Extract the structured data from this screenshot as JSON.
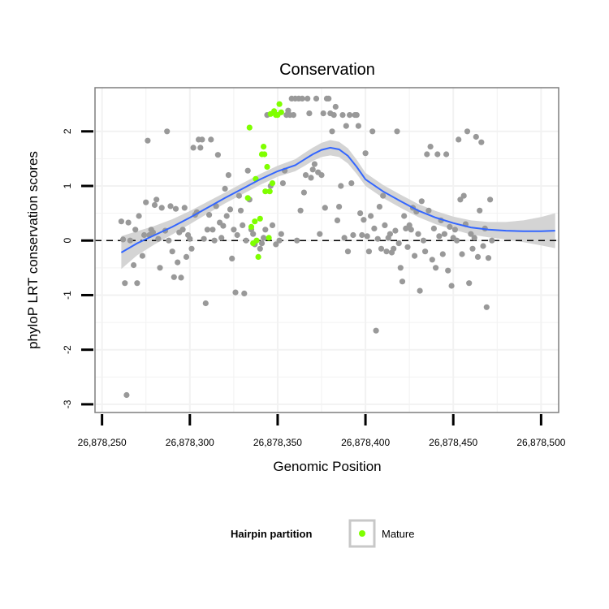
{
  "chart_data": {
    "type": "scatter",
    "title": "Conservation",
    "xlabel": "Genomic Position",
    "ylabel": "phyloP LRT conservation scores",
    "xlim": [
      26878246,
      26878510
    ],
    "ylim": [
      -3.15,
      2.8
    ],
    "x_ticks": [
      26878250,
      26878300,
      26878350,
      26878400,
      26878450,
      26878500
    ],
    "x_tick_labels": [
      "26,878,250",
      "26,878,300",
      "26,878,350",
      "26,878,400",
      "26,878,450",
      "26,878,500"
    ],
    "y_ticks": [
      -3,
      -2,
      -1,
      0,
      1,
      2
    ],
    "y_tick_labels": [
      "-3",
      "-2",
      "-1",
      "0",
      "1",
      "2"
    ],
    "grid": true,
    "reference_line": {
      "y": 0,
      "style": "dashed"
    },
    "legend": {
      "title": "Hairpin partition",
      "entries": [
        "Mature"
      ],
      "position": "bottom"
    },
    "colors": {
      "background_point": "#999999",
      "mature_point": "#7fff00",
      "smooth_line": "#3366ff",
      "ribbon": "#d4d4d4",
      "grid": "#f2f2f2",
      "panel_border": "#7f7f7f"
    },
    "series": [
      {
        "name": "",
        "color": "#999999",
        "points": [
          [
            26878261,
            0.35
          ],
          [
            26878262,
            0.02
          ],
          [
            26878263,
            -0.78
          ],
          [
            26878264,
            -2.83
          ],
          [
            26878265,
            0.33
          ],
          [
            26878266,
            0.0
          ],
          [
            26878268,
            -0.45
          ],
          [
            26878269,
            0.2
          ],
          [
            26878270,
            -0.78
          ],
          [
            26878271,
            0.45
          ],
          [
            26878273,
            -0.28
          ],
          [
            26878274,
            0.1
          ],
          [
            26878275,
            0.7
          ],
          [
            26878276,
            1.83
          ],
          [
            26878277,
            0.1
          ],
          [
            26878278,
            0.2
          ],
          [
            26878279,
            0.15
          ],
          [
            26878280,
            0.65
          ],
          [
            26878281,
            0.75
          ],
          [
            26878282,
            0.03
          ],
          [
            26878283,
            -0.5
          ],
          [
            26878284,
            0.6
          ],
          [
            26878286,
            0.18
          ],
          [
            26878287,
            2.0
          ],
          [
            26878288,
            0.0
          ],
          [
            26878289,
            0.63
          ],
          [
            26878290,
            -0.2
          ],
          [
            26878291,
            -0.67
          ],
          [
            26878292,
            0.58
          ],
          [
            26878293,
            -0.4
          ],
          [
            26878294,
            0.15
          ],
          [
            26878295,
            -0.68
          ],
          [
            26878296,
            0.2
          ],
          [
            26878297,
            0.6
          ],
          [
            26878298,
            -0.3
          ],
          [
            26878299,
            0.1
          ],
          [
            26878300,
            0.03
          ],
          [
            26878301,
            -0.15
          ],
          [
            26878302,
            1.7
          ],
          [
            26878303,
            0.47
          ],
          [
            26878304,
            0.52
          ],
          [
            26878305,
            1.85
          ],
          [
            26878306,
            1.7
          ],
          [
            26878307,
            1.85
          ],
          [
            26878308,
            0.03
          ],
          [
            26878309,
            -1.15
          ],
          [
            26878310,
            0.2
          ],
          [
            26878311,
            0.47
          ],
          [
            26878312,
            1.85
          ],
          [
            26878313,
            0.2
          ],
          [
            26878314,
            0.0
          ],
          [
            26878315,
            0.63
          ],
          [
            26878316,
            1.57
          ],
          [
            26878317,
            0.33
          ],
          [
            26878318,
            0.05
          ],
          [
            26878319,
            0.27
          ],
          [
            26878320,
            0.95
          ],
          [
            26878321,
            0.45
          ],
          [
            26878322,
            1.2
          ],
          [
            26878323,
            0.57
          ],
          [
            26878324,
            -0.33
          ],
          [
            26878325,
            0.2
          ],
          [
            26878326,
            -0.95
          ],
          [
            26878327,
            0.1
          ],
          [
            26878328,
            0.82
          ],
          [
            26878329,
            0.55
          ],
          [
            26878330,
            0.28
          ],
          [
            26878331,
            -0.97
          ],
          [
            26878332,
            0.0
          ],
          [
            26878333,
            1.28
          ],
          [
            26878334,
            0.75
          ],
          [
            26878335,
            0.2
          ],
          [
            26878336,
            0.12
          ],
          [
            26878337,
            -0.07
          ],
          [
            26878340,
            -0.15
          ],
          [
            26878341,
            -0.05
          ],
          [
            26878342,
            0.05
          ],
          [
            26878343,
            0.2
          ],
          [
            26878344,
            2.3
          ],
          [
            26878346,
            1.0
          ],
          [
            26878347,
            0.28
          ],
          [
            26878349,
            -0.07
          ],
          [
            26878351,
            0.0
          ],
          [
            26878352,
            0.12
          ],
          [
            26878353,
            1.05
          ],
          [
            26878354,
            1.28
          ],
          [
            26878355,
            2.3
          ],
          [
            26878356,
            2.38
          ],
          [
            26878357,
            2.3
          ],
          [
            26878358,
            2.6
          ],
          [
            26878359,
            2.3
          ],
          [
            26878360,
            2.6
          ],
          [
            26878361,
            0.0
          ],
          [
            26878362,
            2.6
          ],
          [
            26878363,
            0.55
          ],
          [
            26878364,
            2.6
          ],
          [
            26878365,
            0.88
          ],
          [
            26878366,
            1.2
          ],
          [
            26878367,
            2.6
          ],
          [
            26878368,
            2.33
          ],
          [
            26878369,
            1.15
          ],
          [
            26878370,
            1.3
          ],
          [
            26878371,
            1.4
          ],
          [
            26878372,
            2.6
          ],
          [
            26878373,
            1.25
          ],
          [
            26878374,
            0.12
          ],
          [
            26878375,
            1.2
          ],
          [
            26878376,
            2.33
          ],
          [
            26878377,
            0.6
          ],
          [
            26878378,
            2.6
          ],
          [
            26878379,
            2.6
          ],
          [
            26878380,
            2.33
          ],
          [
            26878381,
            2.0
          ],
          [
            26878382,
            2.3
          ],
          [
            26878383,
            2.45
          ],
          [
            26878384,
            0.37
          ],
          [
            26878385,
            0.62
          ],
          [
            26878386,
            1.0
          ],
          [
            26878387,
            2.3
          ],
          [
            26878388,
            0.05
          ],
          [
            26878389,
            2.1
          ],
          [
            26878390,
            -0.2
          ],
          [
            26878391,
            2.3
          ],
          [
            26878392,
            1.05
          ],
          [
            26878393,
            0.1
          ],
          [
            26878394,
            2.3
          ],
          [
            26878395,
            2.3
          ],
          [
            26878396,
            2.1
          ],
          [
            26878397,
            0.5
          ],
          [
            26878398,
            0.1
          ],
          [
            26878399,
            0.38
          ],
          [
            26878400,
            1.6
          ],
          [
            26878401,
            0.08
          ],
          [
            26878402,
            -0.2
          ],
          [
            26878403,
            0.45
          ],
          [
            26878404,
            2.0
          ],
          [
            26878405,
            0.22
          ],
          [
            26878406,
            -1.65
          ],
          [
            26878407,
            0.03
          ],
          [
            26878408,
            0.62
          ],
          [
            26878409,
            -0.15
          ],
          [
            26878410,
            0.82
          ],
          [
            26878411,
            0.28
          ],
          [
            26878412,
            -0.2
          ],
          [
            26878413,
            0.05
          ],
          [
            26878414,
            0.12
          ],
          [
            26878415,
            -0.22
          ],
          [
            26878416,
            -0.15
          ],
          [
            26878417,
            0.18
          ],
          [
            26878418,
            2.0
          ],
          [
            26878419,
            -0.05
          ],
          [
            26878420,
            -0.5
          ],
          [
            26878421,
            -0.75
          ],
          [
            26878422,
            0.45
          ],
          [
            26878423,
            0.22
          ],
          [
            26878424,
            -0.12
          ],
          [
            26878425,
            0.28
          ],
          [
            26878426,
            0.2
          ],
          [
            26878427,
            0.6
          ],
          [
            26878428,
            -0.28
          ],
          [
            26878429,
            0.53
          ],
          [
            26878430,
            0.12
          ],
          [
            26878431,
            -0.92
          ],
          [
            26878432,
            0.72
          ],
          [
            26878433,
            0.0
          ],
          [
            26878434,
            -0.2
          ],
          [
            26878435,
            1.58
          ],
          [
            26878436,
            0.55
          ],
          [
            26878437,
            1.72
          ],
          [
            26878438,
            -0.35
          ],
          [
            26878439,
            0.22
          ],
          [
            26878440,
            -0.5
          ],
          [
            26878441,
            1.58
          ],
          [
            26878442,
            0.08
          ],
          [
            26878443,
            0.37
          ],
          [
            26878444,
            -0.25
          ],
          [
            26878445,
            0.12
          ],
          [
            26878446,
            1.58
          ],
          [
            26878447,
            -0.55
          ],
          [
            26878448,
            0.25
          ],
          [
            26878449,
            -0.83
          ],
          [
            26878450,
            0.05
          ],
          [
            26878451,
            0.2
          ],
          [
            26878452,
            0.0
          ],
          [
            26878453,
            1.85
          ],
          [
            26878454,
            0.75
          ],
          [
            26878455,
            -0.25
          ],
          [
            26878456,
            0.82
          ],
          [
            26878457,
            0.3
          ],
          [
            26878458,
            2.0
          ],
          [
            26878459,
            -0.78
          ],
          [
            26878460,
            0.12
          ],
          [
            26878461,
            -0.15
          ],
          [
            26878462,
            0.05
          ],
          [
            26878463,
            1.9
          ],
          [
            26878464,
            -0.3
          ],
          [
            26878465,
            0.55
          ],
          [
            26878466,
            1.8
          ],
          [
            26878467,
            -0.1
          ],
          [
            26878468,
            0.22
          ],
          [
            26878469,
            -1.22
          ],
          [
            26878470,
            -0.32
          ],
          [
            26878471,
            0.75
          ],
          [
            26878472,
            0.0
          ]
        ]
      },
      {
        "name": "Mature",
        "color": "#7fff00",
        "points": [
          [
            26878333,
            0.78
          ],
          [
            26878334,
            2.07
          ],
          [
            26878335,
            0.25
          ],
          [
            26878336,
            -0.05
          ],
          [
            26878337,
            0.35
          ],
          [
            26878337.5,
            1.13
          ],
          [
            26878338,
            0.0
          ],
          [
            26878339,
            -0.3
          ],
          [
            26878340,
            0.4
          ],
          [
            26878341,
            1.58
          ],
          [
            26878342,
            1.72
          ],
          [
            26878342.5,
            1.58
          ],
          [
            26878343,
            0.9
          ],
          [
            26878344,
            1.35
          ],
          [
            26878345,
            0.05
          ],
          [
            26878345.5,
            0.9
          ],
          [
            26878346,
            2.32
          ],
          [
            26878347,
            1.05
          ],
          [
            26878348,
            2.37
          ],
          [
            26878349,
            2.3
          ],
          [
            26878350,
            2.3
          ],
          [
            26878351,
            2.5
          ],
          [
            26878352,
            2.35
          ]
        ]
      }
    ],
    "smooth": {
      "x": [
        26878261,
        26878270,
        26878280,
        26878290,
        26878300,
        26878310,
        26878320,
        26878330,
        26878340,
        26878350,
        26878360,
        26878365,
        26878370,
        26878375,
        26878380,
        26878385,
        26878390,
        26878395,
        26878400,
        26878410,
        26878420,
        26878430,
        26878440,
        26878450,
        26878460,
        26878470,
        26878480,
        26878490,
        26878500,
        26878508
      ],
      "y": [
        -0.22,
        -0.05,
        0.1,
        0.25,
        0.42,
        0.6,
        0.78,
        0.95,
        1.12,
        1.27,
        1.38,
        1.48,
        1.58,
        1.66,
        1.7,
        1.67,
        1.55,
        1.35,
        1.12,
        0.9,
        0.72,
        0.55,
        0.42,
        0.32,
        0.24,
        0.2,
        0.18,
        0.17,
        0.17,
        0.18
      ],
      "se": [
        0.3,
        0.22,
        0.17,
        0.14,
        0.12,
        0.11,
        0.1,
        0.1,
        0.1,
        0.1,
        0.11,
        0.12,
        0.12,
        0.13,
        0.14,
        0.14,
        0.14,
        0.13,
        0.12,
        0.12,
        0.12,
        0.12,
        0.12,
        0.12,
        0.13,
        0.14,
        0.16,
        0.2,
        0.26,
        0.32
      ]
    }
  }
}
